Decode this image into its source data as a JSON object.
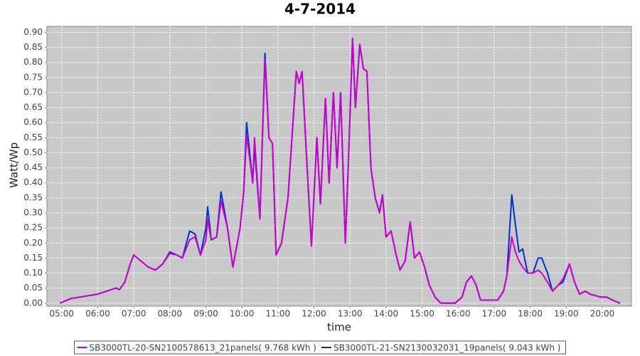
{
  "chart_data": {
    "type": "line",
    "title": "4-7-2014",
    "x_label": "time",
    "y_label": "Watt/Wp",
    "xlim": [
      4.59,
      20.81
    ],
    "ylim": [
      -0.01,
      0.92
    ],
    "grid": true,
    "legend": "bottom",
    "background": "#c8c8c8",
    "xticks": [
      {
        "value": 5,
        "label": "05:00"
      },
      {
        "value": 6,
        "label": "06:00"
      },
      {
        "value": 7,
        "label": "07:00"
      },
      {
        "value": 8,
        "label": "08:00"
      },
      {
        "value": 9,
        "label": "09:00"
      },
      {
        "value": 10,
        "label": "10:00"
      },
      {
        "value": 11,
        "label": "11:00"
      },
      {
        "value": 12,
        "label": "12:00"
      },
      {
        "value": 13,
        "label": "13:00"
      },
      {
        "value": 14,
        "label": "14:00"
      },
      {
        "value": 15,
        "label": "15:00"
      },
      {
        "value": 16,
        "label": "16:00"
      },
      {
        "value": 17,
        "label": "17:00"
      },
      {
        "value": 18,
        "label": "18:00"
      },
      {
        "value": 19,
        "label": "19:00"
      },
      {
        "value": 20,
        "label": "20:00"
      }
    ],
    "yticks": [
      {
        "value": 0,
        "label": "0.00"
      },
      {
        "value": 0.05,
        "label": "0.05"
      },
      {
        "value": 0.1,
        "label": "0.10"
      },
      {
        "value": 0.15,
        "label": "0.15"
      },
      {
        "value": 0.2,
        "label": "0.20"
      },
      {
        "value": 0.25,
        "label": "0.25"
      },
      {
        "value": 0.3,
        "label": "0.30"
      },
      {
        "value": 0.35,
        "label": "0.35"
      },
      {
        "value": 0.4,
        "label": "0.40"
      },
      {
        "value": 0.45,
        "label": "0.45"
      },
      {
        "value": 0.5,
        "label": "0.50"
      },
      {
        "value": 0.55,
        "label": "0.55"
      },
      {
        "value": 0.6,
        "label": "0.60"
      },
      {
        "value": 0.65,
        "label": "0.65"
      },
      {
        "value": 0.7,
        "label": "0.70"
      },
      {
        "value": 0.75,
        "label": "0.75"
      },
      {
        "value": 0.8,
        "label": "0.80"
      },
      {
        "value": 0.85,
        "label": "0.85"
      },
      {
        "value": 0.9,
        "label": "0.90"
      }
    ],
    "x": [
      4.95,
      5.25,
      5.5,
      5.75,
      6.0,
      6.25,
      6.5,
      6.6,
      6.75,
      6.9,
      7.0,
      7.2,
      7.4,
      7.6,
      7.8,
      8.0,
      8.2,
      8.35,
      8.55,
      8.7,
      8.85,
      9.0,
      9.05,
      9.15,
      9.3,
      9.42,
      9.6,
      9.75,
      9.95,
      10.05,
      10.13,
      10.3,
      10.35,
      10.5,
      10.64,
      10.75,
      10.85,
      10.95,
      11.1,
      11.28,
      11.51,
      11.59,
      11.67,
      11.81,
      11.93,
      12.08,
      12.18,
      12.32,
      12.42,
      12.54,
      12.64,
      12.74,
      12.87,
      12.95,
      13.07,
      13.15,
      13.27,
      13.37,
      13.47,
      13.58,
      13.7,
      13.82,
      13.9,
      14.0,
      14.14,
      14.28,
      14.39,
      14.53,
      14.67,
      14.79,
      14.93,
      15.07,
      15.2,
      15.36,
      15.52,
      15.91,
      16.11,
      16.23,
      16.37,
      16.5,
      16.62,
      16.9,
      17.1,
      17.26,
      17.35,
      17.49,
      17.59,
      17.69,
      17.79,
      17.93,
      18.08,
      18.22,
      18.32,
      18.48,
      18.62,
      18.78,
      18.91,
      19.09,
      19.23,
      19.37,
      19.53,
      19.66,
      19.96,
      20.12,
      20.29,
      20.49
    ],
    "series": [
      {
        "name": "SB3000TL-20-SN2100578613_21panels( 9.768 kWh )",
        "color": "#cc00cc",
        "values": [
          0,
          0.015,
          0.02,
          0.025,
          0.03,
          0.04,
          0.05,
          0.045,
          0.07,
          0.13,
          0.16,
          0.14,
          0.12,
          0.11,
          0.13,
          0.165,
          0.16,
          0.15,
          0.21,
          0.22,
          0.16,
          0.21,
          0.28,
          0.21,
          0.22,
          0.34,
          0.25,
          0.12,
          0.25,
          0.37,
          0.56,
          0.4,
          0.55,
          0.28,
          0.81,
          0.55,
          0.53,
          0.16,
          0.2,
          0.35,
          0.77,
          0.73,
          0.77,
          0.45,
          0.19,
          0.55,
          0.33,
          0.68,
          0.4,
          0.7,
          0.45,
          0.7,
          0.2,
          0.45,
          0.88,
          0.65,
          0.86,
          0.78,
          0.77,
          0.45,
          0.35,
          0.3,
          0.36,
          0.22,
          0.24,
          0.16,
          0.11,
          0.14,
          0.27,
          0.15,
          0.17,
          0.12,
          0.06,
          0.02,
          0,
          0,
          0.02,
          0.07,
          0.09,
          0.06,
          0.01,
          0.01,
          0.01,
          0.04,
          0.09,
          0.22,
          0.17,
          0.14,
          0.12,
          0.1,
          0.1,
          0.11,
          0.1,
          0.07,
          0.04,
          0.06,
          0.08,
          0.13,
          0.07,
          0.03,
          0.04,
          0.03,
          0.02,
          0.02,
          0.01,
          0
        ]
      },
      {
        "name": "SB3000TL-21-SN2130032031_19panels( 9.043 kWh )",
        "color": "#0033cc",
        "values": [
          0,
          0.015,
          0.02,
          0.025,
          0.03,
          0.04,
          0.05,
          0.045,
          0.07,
          0.13,
          0.16,
          0.14,
          0.12,
          0.11,
          0.13,
          0.17,
          0.16,
          0.15,
          0.24,
          0.23,
          0.16,
          0.25,
          0.32,
          0.21,
          0.22,
          0.37,
          0.25,
          0.12,
          0.25,
          0.37,
          0.6,
          0.4,
          0.52,
          0.28,
          0.83,
          0.55,
          0.53,
          0.16,
          0.2,
          0.35,
          0.77,
          0.73,
          0.77,
          0.45,
          0.19,
          0.55,
          0.33,
          0.68,
          0.4,
          0.7,
          0.45,
          0.7,
          0.2,
          0.45,
          0.88,
          0.65,
          0.86,
          0.78,
          0.77,
          0.45,
          0.35,
          0.3,
          0.36,
          0.22,
          0.24,
          0.16,
          0.11,
          0.14,
          0.27,
          0.15,
          0.17,
          0.12,
          0.06,
          0.02,
          0,
          0,
          0.02,
          0.07,
          0.09,
          0.06,
          0.01,
          0.01,
          0.01,
          0.04,
          0.09,
          0.36,
          0.26,
          0.17,
          0.18,
          0.1,
          0.1,
          0.15,
          0.15,
          0.1,
          0.04,
          0.06,
          0.07,
          0.13,
          0.07,
          0.03,
          0.04,
          0.03,
          0.02,
          0.02,
          0.01,
          0
        ]
      }
    ]
  }
}
